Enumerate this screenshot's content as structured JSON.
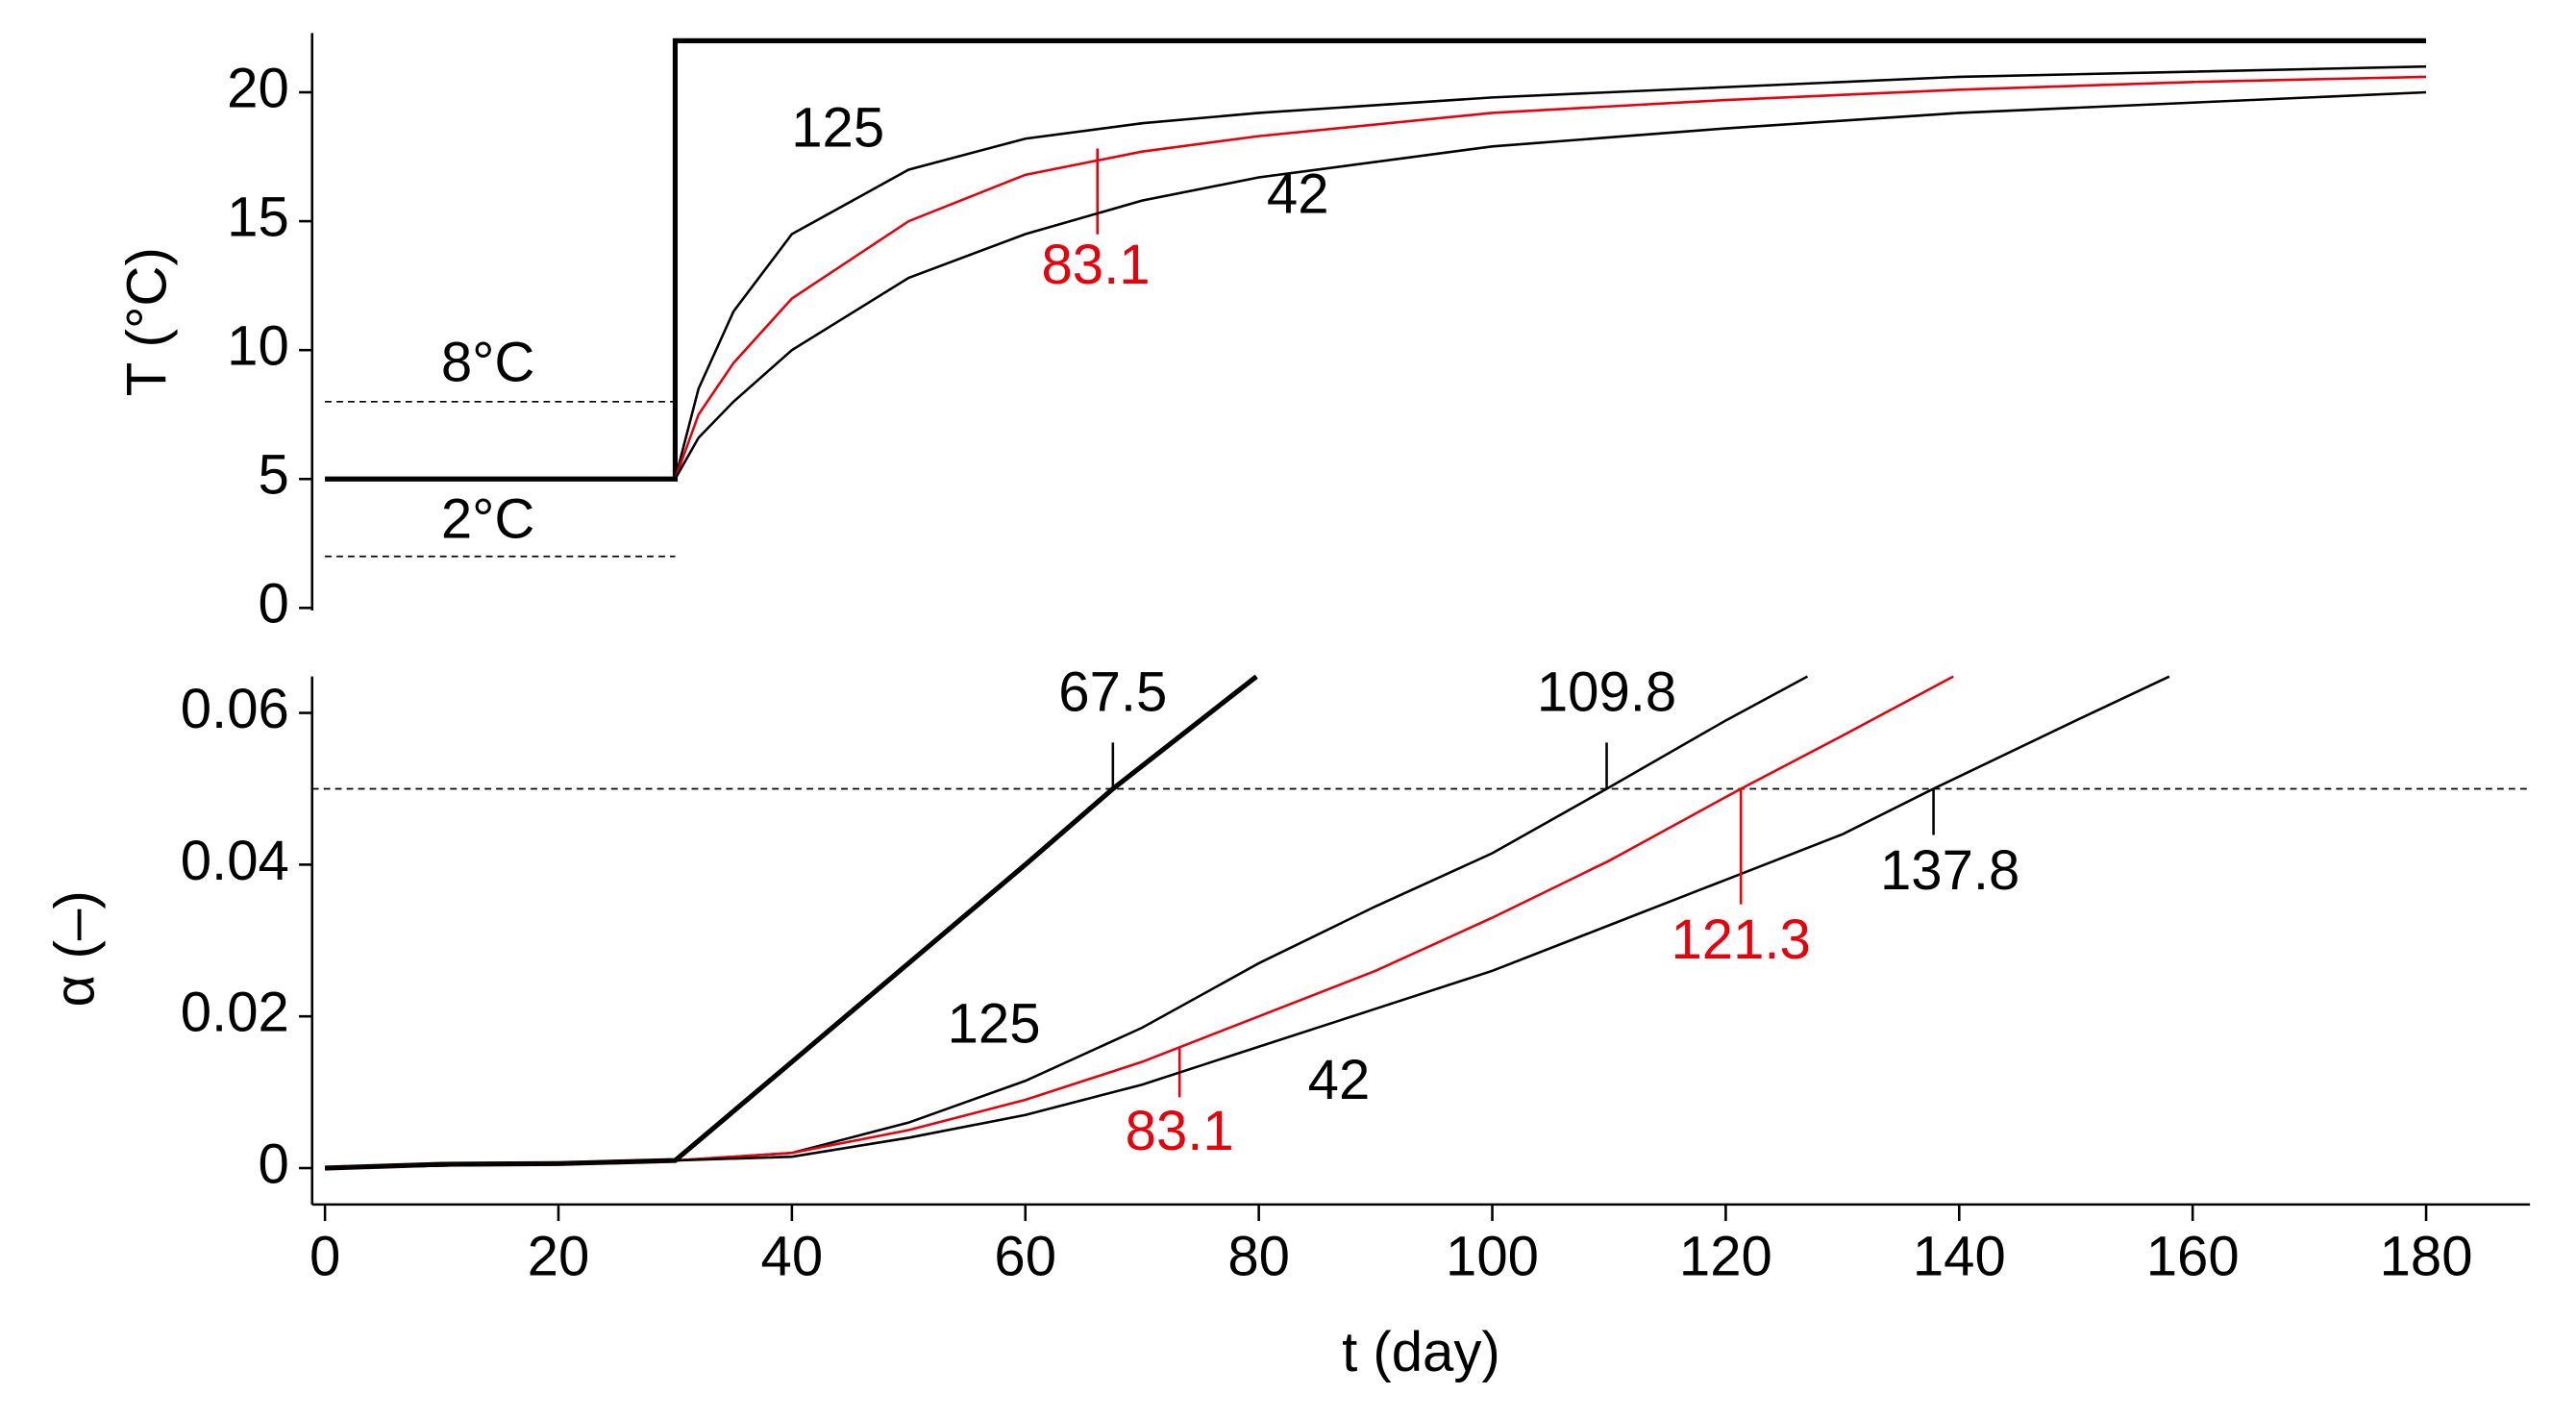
{
  "chart_data": [
    {
      "type": "line",
      "y_label": "T (°C)",
      "xlim": [
        -1.1,
        188.9
      ],
      "ylim": [
        -0.1,
        22.3
      ],
      "yticks": [
        0,
        5,
        10,
        15,
        20
      ],
      "series": [
        {
          "color": "#000000",
          "width": 3,
          "x": [
            0,
            30,
            30,
            180
          ],
          "values": [
            5,
            5,
            22,
            22
          ]
        },
        {
          "name": "125",
          "color": "#000000",
          "width": 1.5,
          "x": [
            0,
            30,
            32,
            35,
            40,
            50,
            60,
            70,
            80,
            100,
            120,
            140,
            160,
            180
          ],
          "values": [
            5,
            5,
            8.5,
            11.5,
            14.5,
            17,
            18.2,
            18.8,
            19.2,
            19.8,
            20.2,
            20.6,
            20.8,
            21
          ]
        },
        {
          "name": "83.1",
          "color": "#e8000b",
          "width": 1.5,
          "x": [
            0,
            30,
            32,
            35,
            40,
            50,
            60,
            70,
            80,
            100,
            120,
            140,
            160,
            180
          ],
          "values": [
            5,
            5,
            7.5,
            9.5,
            12,
            15,
            16.8,
            17.7,
            18.3,
            19.2,
            19.7,
            20.1,
            20.4,
            20.6
          ]
        },
        {
          "name": "42",
          "color": "#000000",
          "width": 1.5,
          "x": [
            0,
            30,
            32,
            35,
            40,
            50,
            60,
            70,
            80,
            100,
            120,
            140,
            160,
            180
          ],
          "values": [
            5,
            5,
            6.6,
            8,
            10,
            12.8,
            14.5,
            15.8,
            16.7,
            17.9,
            18.6,
            19.2,
            19.6,
            20
          ]
        },
        {
          "name": "8°C",
          "color": "#000000",
          "width": 1,
          "dash": true,
          "x": [
            0,
            30
          ],
          "values": [
            8,
            8
          ]
        },
        {
          "name": "2°C",
          "color": "#000000",
          "width": 1,
          "dash": true,
          "x": [
            0,
            30
          ],
          "values": [
            2,
            2
          ]
        }
      ]
    },
    {
      "type": "line",
      "y_label": "α (–)",
      "x_label": "t (day)",
      "xlim": [
        -1.1,
        188.9
      ],
      "ylim": [
        -0.0048,
        0.0648
      ],
      "xticks": [
        0,
        20,
        40,
        60,
        80,
        100,
        120,
        140,
        160,
        180
      ],
      "yticks": [
        0,
        0.02,
        0.04,
        0.06
      ],
      "threshold": 0.05,
      "series": [
        {
          "color": "#000000",
          "width": 3,
          "x": [
            0,
            10,
            20,
            30,
            40,
            50,
            60,
            67.5,
            79.8
          ],
          "values": [
            0,
            0.0005,
            0.0006,
            0.001,
            0.014,
            0.027,
            0.04,
            0.05,
            0.0648
          ]
        },
        {
          "name": "125",
          "color": "#000000",
          "width": 1.5,
          "x": [
            0,
            30,
            40,
            50,
            60,
            70,
            80,
            90,
            100,
            109.8,
            120,
            127
          ],
          "values": [
            0,
            0.001,
            0.002,
            0.006,
            0.0115,
            0.0185,
            0.027,
            0.0345,
            0.0415,
            0.05,
            0.059,
            0.0648
          ]
        },
        {
          "name": "83.1",
          "color": "#e8000b",
          "width": 1.5,
          "x": [
            0,
            30,
            40,
            50,
            60,
            70,
            80,
            90,
            100,
            110,
            121.3,
            130,
            139.5
          ],
          "values": [
            0,
            0.001,
            0.002,
            0.005,
            0.009,
            0.014,
            0.02,
            0.026,
            0.033,
            0.0405,
            0.05,
            0.057,
            0.0648
          ]
        },
        {
          "name": "42",
          "color": "#000000",
          "width": 1.5,
          "x": [
            0,
            30,
            40,
            50,
            60,
            70,
            80,
            90,
            100,
            110,
            120,
            130,
            137.8,
            150,
            158
          ],
          "values": [
            0,
            0.001,
            0.0015,
            0.004,
            0.007,
            0.011,
            0.016,
            0.021,
            0.026,
            0.032,
            0.038,
            0.044,
            0.05,
            0.059,
            0.0648
          ]
        }
      ],
      "markers": [
        {
          "t": 67.5,
          "color": "#000000"
        },
        {
          "t": 109.8,
          "color": "#000000"
        },
        {
          "t": 121.3,
          "color": "#e8000b"
        },
        {
          "t": 137.8,
          "color": "#000000"
        }
      ]
    }
  ]
}
